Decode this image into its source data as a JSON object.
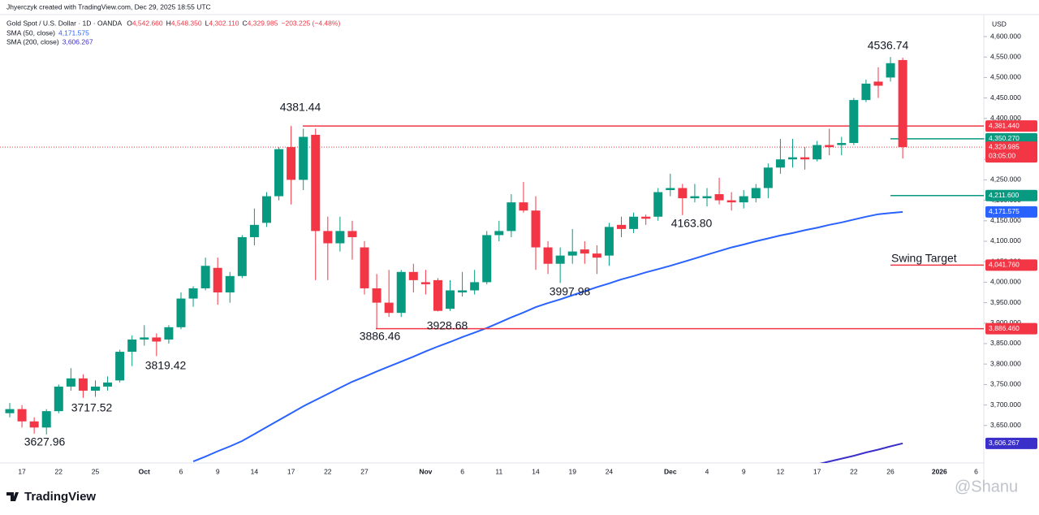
{
  "header": {
    "attribution": "Jhyerczyk created with TradingView.com, Dec 29, 2025 18:55 UTC",
    "symbol": "Gold Spot / U.S. Dollar · 1D · OANDA",
    "ohlc": [
      {
        "key": "O",
        "value": "4,542.660"
      },
      {
        "key": "H",
        "value": "4,548.350"
      },
      {
        "key": "L",
        "value": "4,302.110"
      },
      {
        "key": "C",
        "value": "4,329.985"
      }
    ],
    "change": "−203.225 (−4.48%)"
  },
  "chart_data": {
    "type": "candlestick",
    "currency": "USD",
    "categories": [
      null,
      "17",
      null,
      null,
      "22",
      null,
      null,
      "25",
      null,
      null,
      null,
      "Oct",
      null,
      null,
      "6",
      null,
      null,
      "9",
      null,
      null,
      "14",
      null,
      null,
      "17",
      null,
      null,
      "22",
      null,
      null,
      "27",
      null,
      null,
      null,
      null,
      "Nov",
      null,
      null,
      "6",
      null,
      null,
      "11",
      null,
      null,
      "14",
      null,
      null,
      "19",
      null,
      null,
      "24",
      null,
      null,
      null,
      null,
      "Dec",
      null,
      null,
      "4",
      null,
      null,
      "9",
      null,
      null,
      "12",
      null,
      null,
      "17",
      null,
      null,
      "22",
      null,
      null,
      "26",
      null,
      null,
      null,
      "2026",
      null,
      null,
      "6"
    ],
    "open": [
      3680,
      3690,
      3660,
      3645,
      3685,
      3745,
      3765,
      3735,
      3745,
      3760,
      3830,
      3860,
      3865,
      3860,
      3890,
      3960,
      3985,
      4035,
      3975,
      4015,
      4110,
      4145,
      4210,
      4330,
      4250,
      4360,
      4125,
      4095,
      4125,
      4085,
      3985,
      3950,
      3925,
      4025,
      4000,
      4005,
      3935,
      3975,
      3980,
      4000,
      4115,
      4125,
      4195,
      4175,
      4085,
      4045,
      4065,
      4080,
      4070,
      4065,
      4140,
      4130,
      4160,
      4160,
      4225,
      4230,
      4205,
      4205,
      4215,
      4200,
      4195,
      4205,
      4230,
      4280,
      4300,
      4305,
      4300,
      4335,
      4335,
      4340,
      4445,
      4490,
      4500,
      4542.66,
      null,
      null,
      null,
      null,
      null,
      null
    ],
    "high": [
      3705,
      3700,
      3670,
      3690,
      3750,
      3790,
      3775,
      3760,
      3770,
      3835,
      3870,
      3895,
      3875,
      3895,
      3975,
      3990,
      4060,
      4060,
      4025,
      4115,
      4180,
      4220,
      4330,
      4381.44,
      4375,
      4375,
      4160,
      4160,
      4150,
      4100,
      4020,
      4030,
      4030,
      4045,
      4030,
      4010,
      4005,
      4025,
      4030,
      4125,
      4150,
      4215,
      4245,
      4210,
      4100,
      4085,
      4130,
      4100,
      4090,
      4145,
      4160,
      4170,
      4165,
      4230,
      4265,
      4240,
      4240,
      4230,
      4255,
      4220,
      4225,
      4240,
      4290,
      4350,
      4350,
      4330,
      4345,
      4375,
      4355,
      4450,
      4495,
      4525,
      4550,
      4548.35,
      null,
      null,
      null,
      null,
      null,
      null
    ],
    "low": [
      3670,
      3645,
      3630,
      3627.96,
      3680,
      3735,
      3717.52,
      3720,
      3735,
      3755,
      3795,
      3845,
      3819.42,
      3850,
      3885,
      3940,
      3980,
      3945,
      3950,
      4010,
      4090,
      4135,
      4200,
      4190,
      4225,
      4005,
      4005,
      4075,
      4055,
      3970,
      3886.46,
      3915,
      3915,
      3975,
      3970,
      3928.68,
      3930,
      3965,
      3970,
      3995,
      4100,
      4110,
      4170,
      4030,
      4020,
      3997.98,
      4045,
      4045,
      4020,
      4040,
      4110,
      4120,
      4140,
      4150,
      4210,
      4163.8,
      4195,
      4185,
      4190,
      4175,
      4180,
      4195,
      4205,
      4265,
      4280,
      4275,
      4295,
      4310,
      4310,
      4335,
      4440,
      4450,
      4490,
      4302.11,
      null,
      null,
      null,
      null,
      null,
      null
    ],
    "close": [
      3690,
      3660,
      3645,
      3685,
      3745,
      3765,
      3735,
      3745,
      3755,
      3830,
      3860,
      3865,
      3855,
      3890,
      3960,
      3985,
      4040,
      3975,
      4015,
      4110,
      4140,
      4210,
      4325,
      4250,
      4355,
      4125,
      4095,
      4125,
      4110,
      3985,
      3950,
      3925,
      4025,
      4005,
      3995,
      3930,
      3980,
      3980,
      4000,
      4115,
      4125,
      4195,
      4175,
      4085,
      4045,
      4065,
      4075,
      4070,
      4060,
      4135,
      4130,
      4160,
      4155,
      4220,
      4230,
      4205,
      4210,
      4210,
      4200,
      4195,
      4210,
      4230,
      4280,
      4300,
      4305,
      4300,
      4335,
      4330,
      4340,
      4445,
      4485,
      4480,
      4535,
      4329.985,
      null,
      null,
      null,
      null,
      null,
      null
    ],
    "up_color": "#089981",
    "down_color": "#f23645",
    "series": [
      {
        "name": "SMA (50, close)",
        "last_label": "4,171.575",
        "color": "#2962ff",
        "values": [
          null,
          null,
          null,
          null,
          null,
          null,
          null,
          null,
          null,
          null,
          null,
          null,
          null,
          null,
          null,
          3562,
          3574,
          3587,
          3599,
          3612,
          3629,
          3646,
          3663,
          3680,
          3697,
          3712,
          3727,
          3742,
          3757,
          3769,
          3782,
          3794,
          3806,
          3818,
          3831,
          3843,
          3854,
          3866,
          3877,
          3888,
          3901,
          3914,
          3926,
          3939,
          3949,
          3958,
          3968,
          3978,
          3988,
          3997,
          4007,
          4015,
          4024,
          4032,
          4040,
          4049,
          4058,
          4067,
          4076,
          4085,
          4092,
          4100,
          4107,
          4114,
          4120,
          4127,
          4133,
          4140,
          4146,
          4153,
          4160,
          4166,
          4169,
          4171.575,
          null,
          null,
          null,
          null,
          null,
          null
        ]
      },
      {
        "name": "SMA (200, close)",
        "last_label": "3,606.267",
        "color": "#3b2fc9",
        "values": [
          null,
          null,
          null,
          null,
          null,
          null,
          null,
          null,
          null,
          null,
          null,
          null,
          null,
          null,
          null,
          null,
          null,
          null,
          null,
          null,
          null,
          null,
          null,
          null,
          null,
          null,
          null,
          null,
          null,
          null,
          null,
          null,
          null,
          null,
          null,
          null,
          null,
          null,
          null,
          null,
          null,
          null,
          null,
          null,
          null,
          null,
          null,
          null,
          null,
          null,
          null,
          null,
          null,
          null,
          null,
          null,
          null,
          null,
          null,
          null,
          null,
          null,
          null,
          null,
          null,
          null,
          3555,
          3562,
          3569,
          3576,
          3584,
          3591,
          3599,
          3606.267,
          null,
          null,
          null,
          null,
          null,
          null
        ]
      }
    ],
    "levels": [
      {
        "value": 4381.44,
        "label": "4,381.440",
        "color": "#f23645"
      },
      {
        "value": 4350.27,
        "label": "4,350.270",
        "color": "#089981"
      },
      {
        "value": 4211.6,
        "label": "4,211.600",
        "color": "#089981"
      },
      {
        "value": 4041.76,
        "label": "4,041.760",
        "color": "#f23645"
      },
      {
        "value": 3886.46,
        "label": "3,886.460",
        "color": "#f23645"
      }
    ],
    "last_price": {
      "value": 4329.985,
      "label": "4,329.985",
      "countdown": "03:05:00",
      "color": "#f23645"
    },
    "annotations": [
      "4536.74",
      "4381.44",
      "3627.96",
      "3717.52",
      "3819.42",
      "3886.46",
      "3928.68",
      "3997.98",
      "4163.80",
      "Swing Target"
    ],
    "ylim": [
      3558.3,
      4653.6
    ],
    "yticks": [
      {
        "value": 3650,
        "label": "3,650.000"
      },
      {
        "value": 3700,
        "label": "3,700.000"
      },
      {
        "value": 3750,
        "label": "3,750.000"
      },
      {
        "value": 3800,
        "label": "3,800.000"
      },
      {
        "value": 3850,
        "label": "3,850.000"
      },
      {
        "value": 3900,
        "label": "3,900.000"
      },
      {
        "value": 3950,
        "label": "3,950.000"
      },
      {
        "value": 4000,
        "label": "4,000.000"
      },
      {
        "value": 4050,
        "label": "4,050.000"
      },
      {
        "value": 4100,
        "label": "4,100.000"
      },
      {
        "value": 4150,
        "label": "4,150.000"
      },
      {
        "value": 4200,
        "label": "4,200.000"
      },
      {
        "value": 4250,
        "label": "4,250.000"
      },
      {
        "value": 4300,
        "label": "4,300.000"
      },
      {
        "value": 4350,
        "label": "4,350.000"
      },
      {
        "value": 4400,
        "label": "4,400.000"
      },
      {
        "value": 4450,
        "label": "4,450.000"
      },
      {
        "value": 4500,
        "label": "4,500.000"
      },
      {
        "value": 4550,
        "label": "4,550.000"
      },
      {
        "value": 4600,
        "label": "4,600.000"
      }
    ]
  },
  "footer": {
    "logo": "TradingView",
    "watermark": "@Shanu"
  }
}
